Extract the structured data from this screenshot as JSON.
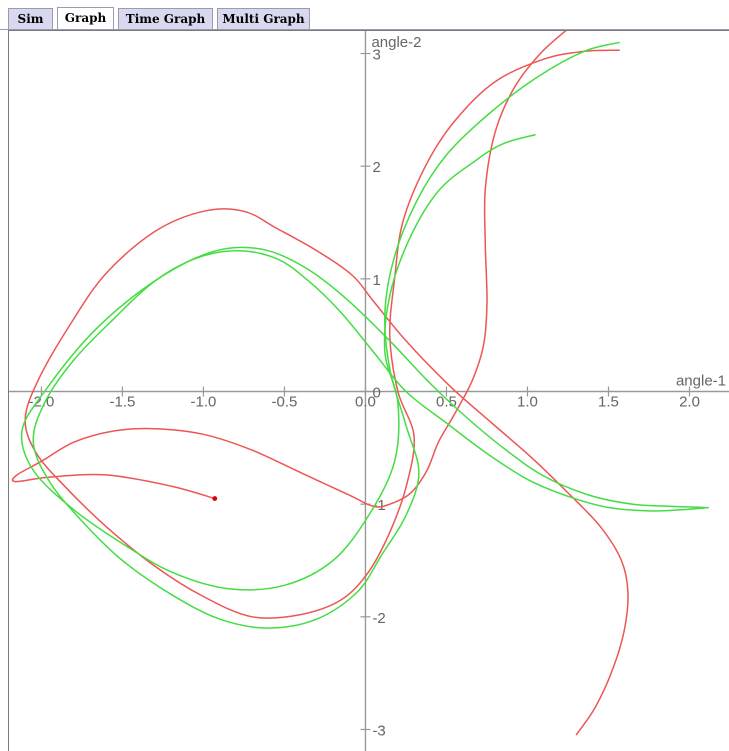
{
  "tabs": [
    {
      "label": "Sim",
      "active": false
    },
    {
      "label": "Graph",
      "active": true
    },
    {
      "label": "Time Graph",
      "active": false
    },
    {
      "label": "Multi Graph",
      "active": false
    }
  ],
  "chart_data": {
    "type": "line",
    "xlabel": "angle-1",
    "ylabel": "angle-2",
    "xlim": [
      -2.2,
      2.25
    ],
    "ylim": [
      -3.2,
      3.2
    ],
    "x_ticks": [
      "-2.0",
      "-1.5",
      "-1.0",
      "-0.5",
      "0.0",
      "0.5",
      "1.0",
      "1.5",
      "2.0"
    ],
    "x_tick_values": [
      -2.0,
      -1.5,
      -1.0,
      -0.5,
      0.0,
      0.5,
      1.0,
      1.5,
      2.0
    ],
    "y_ticks": [
      "-3",
      "-2",
      "-1",
      "0",
      "1",
      "2",
      "3"
    ],
    "y_tick_values": [
      -3,
      -2,
      -1,
      0,
      1,
      2,
      3
    ],
    "grid": false,
    "colors": {
      "axis": "#999999",
      "tick_label": "#666666",
      "series_a": "#ee5555",
      "series_b": "#44dd44",
      "marker": "#dd0000"
    },
    "series": [
      {
        "color": "#ee5555",
        "points": [
          [
            -0.93,
            -0.95
          ],
          [
            -1.2,
            -0.84
          ],
          [
            -1.6,
            -0.74
          ],
          [
            -1.95,
            -0.76
          ],
          [
            -2.16,
            -0.8
          ],
          [
            -2.15,
            -0.74
          ],
          [
            -2.0,
            -0.62
          ],
          [
            -1.8,
            -0.45
          ],
          [
            -1.55,
            -0.35
          ],
          [
            -1.3,
            -0.33
          ],
          [
            -1.0,
            -0.38
          ],
          [
            -0.7,
            -0.52
          ],
          [
            -0.4,
            -0.72
          ],
          [
            -0.1,
            -0.92
          ],
          [
            0.05,
            -1.02
          ],
          [
            0.15,
            -1.0
          ],
          [
            0.28,
            -0.9
          ],
          [
            0.38,
            -0.7
          ],
          [
            0.45,
            -0.45
          ],
          [
            0.55,
            -0.2
          ],
          [
            0.66,
            0.1
          ],
          [
            0.73,
            0.42
          ],
          [
            0.75,
            0.8
          ],
          [
            0.74,
            1.3
          ],
          [
            0.74,
            1.8
          ],
          [
            0.8,
            2.3
          ],
          [
            0.92,
            2.7
          ],
          [
            1.08,
            3.0
          ],
          [
            1.25,
            3.22
          ]
        ]
      },
      {
        "color": "#ee5555",
        "points": [
          [
            1.3,
            -3.05
          ],
          [
            1.42,
            -2.8
          ],
          [
            1.53,
            -2.45
          ],
          [
            1.6,
            -2.1
          ],
          [
            1.62,
            -1.78
          ],
          [
            1.58,
            -1.5
          ],
          [
            1.45,
            -1.2
          ],
          [
            1.25,
            -0.9
          ],
          [
            1.02,
            -0.58
          ],
          [
            0.78,
            -0.28
          ],
          [
            0.52,
            0.05
          ],
          [
            0.25,
            0.45
          ],
          [
            0.05,
            0.8
          ],
          [
            -0.08,
            1.03
          ],
          [
            -0.3,
            1.25
          ],
          [
            -0.55,
            1.45
          ],
          [
            -0.75,
            1.6
          ],
          [
            -1.0,
            1.6
          ],
          [
            -1.3,
            1.42
          ],
          [
            -1.6,
            1.05
          ],
          [
            -1.82,
            0.6
          ],
          [
            -2.02,
            0.1
          ],
          [
            -2.1,
            -0.25
          ],
          [
            -2.03,
            -0.55
          ],
          [
            -1.85,
            -0.85
          ],
          [
            -1.6,
            -1.2
          ],
          [
            -1.3,
            -1.55
          ],
          [
            -1.0,
            -1.82
          ],
          [
            -0.7,
            -2.0
          ],
          [
            -0.4,
            -1.98
          ],
          [
            -0.15,
            -1.85
          ],
          [
            0.02,
            -1.6
          ],
          [
            0.15,
            -1.25
          ],
          [
            0.25,
            -0.85
          ],
          [
            0.3,
            -0.4
          ],
          [
            0.2,
            0.0
          ],
          [
            0.15,
            0.5
          ],
          [
            0.18,
            1.0
          ],
          [
            0.23,
            1.5
          ],
          [
            0.37,
            2.0
          ],
          [
            0.55,
            2.4
          ],
          [
            0.8,
            2.75
          ],
          [
            1.1,
            2.95
          ],
          [
            1.35,
            3.02
          ],
          [
            1.57,
            3.03
          ]
        ]
      },
      {
        "color": "#44dd44",
        "points": [
          [
            2.12,
            -1.03
          ],
          [
            1.95,
            -1.05
          ],
          [
            1.75,
            -1.06
          ],
          [
            1.5,
            -1.03
          ],
          [
            1.25,
            -0.93
          ],
          [
            1.0,
            -0.78
          ],
          [
            0.75,
            -0.55
          ],
          [
            0.5,
            -0.28
          ],
          [
            0.25,
            0.0
          ],
          [
            0.05,
            0.35
          ],
          [
            -0.15,
            0.7
          ],
          [
            -0.35,
            0.98
          ],
          [
            -0.55,
            1.18
          ],
          [
            -0.8,
            1.25
          ],
          [
            -1.05,
            1.18
          ],
          [
            -1.3,
            0.98
          ],
          [
            -1.55,
            0.65
          ],
          [
            -1.8,
            0.28
          ],
          [
            -1.98,
            -0.1
          ],
          [
            -2.05,
            -0.45
          ],
          [
            -1.95,
            -0.8
          ],
          [
            -1.75,
            -1.15
          ],
          [
            -1.5,
            -1.5
          ],
          [
            -1.2,
            -1.8
          ],
          [
            -0.9,
            -2.02
          ],
          [
            -0.6,
            -2.1
          ],
          [
            -0.3,
            -2.02
          ],
          [
            -0.05,
            -1.78
          ],
          [
            0.1,
            -1.45
          ],
          [
            0.25,
            -1.1
          ],
          [
            0.33,
            -0.72
          ],
          [
            0.25,
            -0.3
          ],
          [
            0.15,
            0.2
          ],
          [
            0.12,
            0.7
          ],
          [
            0.18,
            1.2
          ],
          [
            0.32,
            1.7
          ],
          [
            0.5,
            2.1
          ],
          [
            0.75,
            2.45
          ],
          [
            1.05,
            2.78
          ],
          [
            1.35,
            3.02
          ],
          [
            1.57,
            3.1
          ]
        ]
      },
      {
        "color": "#44dd44",
        "points": [
          [
            2.1,
            -1.03
          ],
          [
            1.9,
            -1.02
          ],
          [
            1.65,
            -1.0
          ],
          [
            1.38,
            -0.92
          ],
          [
            1.1,
            -0.75
          ],
          [
            0.85,
            -0.5
          ],
          [
            0.6,
            -0.2
          ],
          [
            0.38,
            0.1
          ],
          [
            0.15,
            0.45
          ],
          [
            -0.1,
            0.8
          ],
          [
            -0.35,
            1.08
          ],
          [
            -0.6,
            1.25
          ],
          [
            -0.85,
            1.27
          ],
          [
            -1.1,
            1.15
          ],
          [
            -1.4,
            0.88
          ],
          [
            -1.7,
            0.5
          ],
          [
            -1.98,
            0.0
          ],
          [
            -2.12,
            -0.35
          ],
          [
            -2.05,
            -0.7
          ],
          [
            -1.8,
            -1.05
          ],
          [
            -1.5,
            -1.35
          ],
          [
            -1.2,
            -1.6
          ],
          [
            -0.85,
            -1.75
          ],
          [
            -0.5,
            -1.72
          ],
          [
            -0.2,
            -1.5
          ],
          [
            0.02,
            -1.1
          ],
          [
            0.18,
            -0.62
          ],
          [
            0.2,
            -0.1
          ],
          [
            0.12,
            0.35
          ],
          [
            0.15,
            0.85
          ],
          [
            0.27,
            1.35
          ],
          [
            0.45,
            1.78
          ],
          [
            0.68,
            2.05
          ],
          [
            0.85,
            2.2
          ],
          [
            1.05,
            2.28
          ]
        ]
      }
    ],
    "marker": {
      "x": -0.93,
      "y": -0.95
    }
  }
}
